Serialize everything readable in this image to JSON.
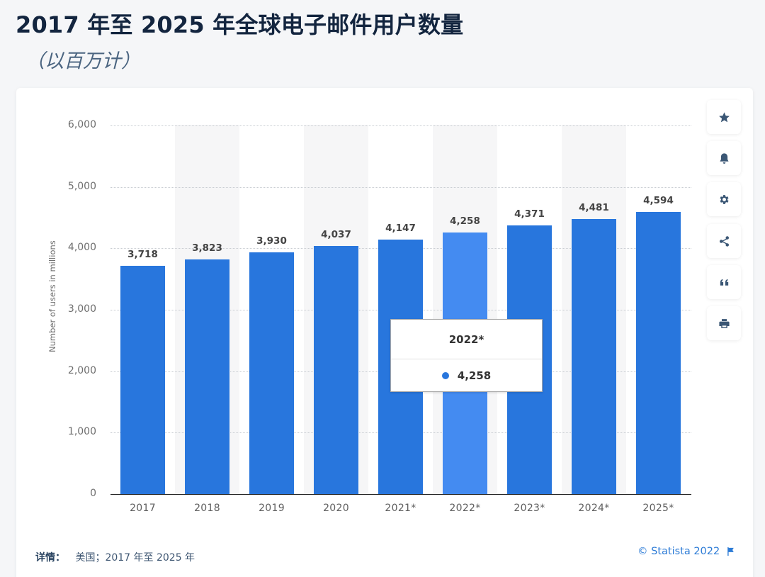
{
  "header": {
    "title": "2017 年至 2025 年全球电子邮件用户数量",
    "subtitle": "（以百万计）"
  },
  "chart_data": {
    "type": "bar",
    "title": "2017 年至 2025 年全球电子邮件用户数量",
    "subtitle": "（以百万计）",
    "categories": [
      "2017",
      "2018",
      "2019",
      "2020",
      "2021*",
      "2022*",
      "2023*",
      "2024*",
      "2025*"
    ],
    "values": [
      3718,
      3823,
      3930,
      4037,
      4147,
      4258,
      4371,
      4481,
      4594
    ],
    "value_labels": [
      "3,718",
      "3,823",
      "3,930",
      "4,037",
      "4,147",
      "4,258",
      "4,371",
      "4,481",
      "4,594"
    ],
    "xlabel": "",
    "ylabel": "Number of users in millions",
    "ylim": [
      0,
      6000
    ],
    "yticks": [
      "0",
      "1,000",
      "2,000",
      "3,000",
      "4,000",
      "5,000",
      "6,000"
    ],
    "grid": true,
    "legend": "none",
    "highlighted_index": 5,
    "colors": {
      "bar": "#2876dd",
      "bar_highlight": "#448bf1"
    }
  },
  "tooltip": {
    "title": "2022*",
    "value": "4,258"
  },
  "sidebar": {
    "buttons": [
      {
        "name": "favorite",
        "icon": "star-icon"
      },
      {
        "name": "notify",
        "icon": "bell-icon"
      },
      {
        "name": "settings",
        "icon": "gear-icon"
      },
      {
        "name": "share",
        "icon": "share-icon"
      },
      {
        "name": "cite",
        "icon": "quote-icon"
      },
      {
        "name": "print",
        "icon": "printer-icon"
      }
    ]
  },
  "footer": {
    "details_label": "详情：",
    "details_text": "美国；2017 年至 2025 年",
    "copyright": "© Statista 2022",
    "flag_icon": "flag-icon"
  }
}
